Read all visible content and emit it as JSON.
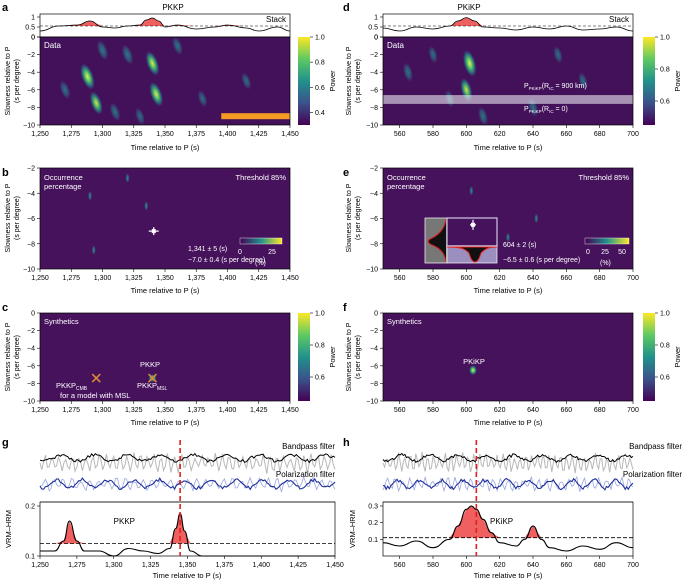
{
  "figure": {
    "panels": [
      {
        "id": "a",
        "label": "a"
      },
      {
        "id": "b",
        "label": "b"
      },
      {
        "id": "c",
        "label": "c"
      },
      {
        "id": "d",
        "label": "d"
      },
      {
        "id": "e",
        "label": "e"
      },
      {
        "id": "f",
        "label": "f"
      },
      {
        "id": "g",
        "label": "g"
      },
      {
        "id": "h",
        "label": "h"
      }
    ],
    "colors": {
      "bg": "#42115a",
      "grid": "#2f0a44",
      "red": "#f06060",
      "orange": "#f59a23",
      "marker": "#d68a3a",
      "dash": "#e02020",
      "blue": "#1f2f99",
      "gray": "#b8b8b8"
    }
  },
  "chart_data": [
    {
      "panel": "a",
      "type": "line+heatmap",
      "top": {
        "title": "PKKP",
        "label": "Stack",
        "yticks": [
          0,
          0.5,
          1
        ],
        "threshold": 0.55,
        "x": [
          1250,
          1265,
          1280,
          1290,
          1300,
          1310,
          1320,
          1330,
          1335,
          1340,
          1345,
          1350,
          1360,
          1375,
          1390,
          1400,
          1415,
          1425,
          1440,
          1450
        ],
        "y": [
          0.3,
          0.55,
          0.6,
          0.8,
          0.5,
          0.45,
          0.55,
          0.6,
          0.85,
          0.95,
          0.8,
          0.5,
          0.6,
          0.4,
          0.5,
          0.6,
          0.45,
          0.3,
          0.5,
          0.3
        ]
      },
      "heatmap": {
        "label": "Data",
        "xlim": [
          1250,
          1450
        ],
        "ylim": [
          -10,
          0
        ],
        "xticks": [
          1250,
          1275,
          1300,
          1325,
          1350,
          1375,
          1400,
          1425,
          1450
        ],
        "xticklabels": [
          "1,250",
          "1,275",
          "1,300",
          "1,325",
          "1,350",
          "1,375",
          "1,400",
          "1,425",
          "1,450"
        ],
        "yticks": [
          0,
          -2,
          -4,
          -6,
          -8,
          -10
        ],
        "xlabel": "Time relative to P (s)",
        "ylabel": "Slowness relative to P",
        "ylabel2": "(s per degree)",
        "hotspots": [
          [
            1288,
            -4.5,
            1.0
          ],
          [
            1295,
            -7.5,
            0.8
          ],
          [
            1340,
            -3,
            0.9
          ],
          [
            1343,
            -6.5,
            0.9
          ],
          [
            1320,
            -2,
            0.6
          ],
          [
            1310,
            -8.5,
            0.5
          ],
          [
            1360,
            -1,
            0.5
          ],
          [
            1380,
            -7,
            0.4
          ],
          [
            1270,
            -6,
            0.5
          ],
          [
            1300,
            -1.5,
            0.6
          ],
          [
            1330,
            -9,
            0.4
          ],
          [
            1415,
            -5,
            0.4
          ]
        ],
        "orange_bar": [
          1395,
          1450,
          -9
        ]
      },
      "colorbar": {
        "label": "Power",
        "ticks": [
          0.4,
          0.6,
          0.8,
          1.0
        ],
        "ticklabels": [
          "0.4",
          "0.6",
          "0.8",
          "1.0"
        ],
        "range": [
          0.3,
          1.0
        ]
      }
    },
    {
      "panel": "b",
      "type": "heatmap",
      "labels": {
        "title": "Occurrence",
        "title2": "percentage",
        "threshold": "Threshold 85%",
        "time_note": "1,341 ± 5 (s)",
        "slow_note": "−7.0 ± 0.4 (s per degree)",
        "unit": "(%)"
      },
      "xlim": [
        1250,
        1450
      ],
      "ylim": [
        -10,
        -2
      ],
      "yticks": [
        -2,
        -4,
        -6,
        -8,
        -10
      ],
      "xticks": [
        1250,
        1275,
        1300,
        1325,
        1350,
        1375,
        1400,
        1425,
        1450
      ],
      "xticklabels": [
        "1,250",
        "1,275",
        "1,300",
        "1,325",
        "1,350",
        "1,375",
        "1,400",
        "1,425",
        "1,450"
      ],
      "xlabel": "Time relative to P (s)",
      "ylabel": "Slowness relative to P",
      "ylabel2": "(s per degree)",
      "marker": [
        1341,
        -7.0
      ],
      "spots": [
        [
          1290,
          -4.2
        ],
        [
          1293,
          -8.5
        ],
        [
          1320,
          -2.8
        ],
        [
          1335,
          -5
        ]
      ],
      "colorbar": {
        "ticks": [
          0,
          25
        ],
        "ticklabels": [
          "0",
          "25"
        ]
      }
    },
    {
      "panel": "c",
      "type": "heatmap",
      "labels": {
        "title": "Synthetics",
        "pkkp": "PKKP",
        "pkkp_cmb": "PKKP",
        "cmb_sub": "CMB",
        "pkkp_msl": "PKKP",
        "msl_sub": "MSL",
        "model_note": "for a model with MSL"
      },
      "xlim": [
        1250,
        1450
      ],
      "ylim": [
        -10,
        0
      ],
      "yticks": [
        0,
        -2,
        -4,
        -6,
        -8,
        -10
      ],
      "xticks": [
        1250,
        1275,
        1300,
        1325,
        1350,
        1375,
        1400,
        1425,
        1450
      ],
      "xticklabels": [
        "1,250",
        "1,275",
        "1,300",
        "1,325",
        "1,350",
        "1,375",
        "1,400",
        "1,425",
        "1,450"
      ],
      "xlabel": "Time relative to P (s)",
      "ylabel": "Slowness relative to P",
      "ylabel2": "(s per degree)",
      "crosses": [
        [
          1295,
          -7.4
        ],
        [
          1340,
          -7.4
        ]
      ],
      "colorbar": {
        "label": "Power",
        "ticks": [
          0.6,
          0.8,
          1.0
        ],
        "ticklabels": [
          "0.6",
          "0.8",
          "1.0"
        ],
        "range": [
          0.45,
          1.0
        ]
      }
    },
    {
      "panel": "d",
      "type": "line+heatmap",
      "top": {
        "title": "PKiKP",
        "label": "Stack",
        "yticks": [
          0,
          0.5,
          1
        ],
        "threshold": 0.55,
        "x": [
          550,
          560,
          570,
          580,
          590,
          595,
          600,
          605,
          610,
          620,
          630,
          640,
          650,
          660,
          670,
          680,
          690,
          700
        ],
        "y": [
          0.45,
          0.3,
          0.5,
          0.4,
          0.55,
          0.8,
          0.97,
          0.8,
          0.5,
          0.45,
          0.35,
          0.5,
          0.4,
          0.55,
          0.35,
          0.4,
          0.5,
          0.3
        ]
      },
      "heatmap": {
        "label": "Data",
        "xlim": [
          550,
          700
        ],
        "ylim": [
          -10,
          0
        ],
        "xticks": [
          560,
          580,
          600,
          620,
          640,
          660,
          680,
          700
        ],
        "xticklabels": [
          "560",
          "580",
          "600",
          "620",
          "640",
          "660",
          "680",
          "700"
        ],
        "yticks": [
          0,
          -2,
          -4,
          -6,
          -8,
          -10
        ],
        "xlabel": "Time relative to P (s)",
        "ylabel": "Slowness relative to P",
        "ylabel2": "(s per degree)",
        "band": [
          -6.6,
          -7.6
        ],
        "annot1": "P",
        "annot1_sub": "PKiKP",
        "annot1_mid": "(R",
        "annot1_sub2": "IC",
        "annot1_end": " = 900 km)",
        "annot2": "P",
        "annot2_sub": "PKiKP",
        "annot2_mid": "(R",
        "annot2_sub2": "IC",
        "annot2_end": " = 0)",
        "hotspots": [
          [
            602,
            -3,
            1.0
          ],
          [
            600,
            -6,
            0.8
          ],
          [
            565,
            -4,
            0.5
          ],
          [
            580,
            -2,
            0.4
          ],
          [
            640,
            -8,
            0.5
          ],
          [
            655,
            -2,
            0.4
          ],
          [
            610,
            -9,
            0.5
          ],
          [
            590,
            -7,
            0.4
          ],
          [
            670,
            -5,
            0.4
          ]
        ]
      },
      "colorbar": {
        "label": "Power",
        "ticks": [
          0.6,
          0.8,
          1.0
        ],
        "ticklabels": [
          "0.6",
          "0.8",
          "1.0"
        ],
        "range": [
          0.45,
          1.0
        ]
      }
    },
    {
      "panel": "e",
      "type": "heatmap",
      "labels": {
        "title": "Occurrence",
        "title2": "percentage",
        "threshold": "Threshold 85%",
        "time_note": "604 ± 2 (s)",
        "slow_note": "−6.5 ± 0.6 (s per degree)",
        "unit": "(%)"
      },
      "xlim": [
        550,
        700
      ],
      "ylim": [
        -10,
        -2
      ],
      "yticks": [
        -2,
        -4,
        -6,
        -8,
        -10
      ],
      "xticks": [
        560,
        580,
        600,
        620,
        640,
        660,
        680,
        700
      ],
      "xticklabels": [
        "560",
        "580",
        "600",
        "620",
        "640",
        "660",
        "680",
        "700"
      ],
      "xlabel": "Time relative to P (s)",
      "ylabel": "Slowness relative to P",
      "ylabel2": "(s per degree)",
      "marker": [
        604,
        -6.5
      ],
      "spots": [
        [
          603,
          -3.8
        ],
        [
          642,
          -6
        ],
        [
          625,
          -7.5
        ]
      ],
      "colorbar": {
        "ticks": [
          0,
          25,
          50
        ],
        "ticklabels": [
          "0",
          "25",
          "50"
        ]
      }
    },
    {
      "panel": "f",
      "type": "heatmap",
      "labels": {
        "title": "Synthetics",
        "pkikp": "PKiKP"
      },
      "xlim": [
        550,
        700
      ],
      "ylim": [
        -10,
        0
      ],
      "yticks": [
        0,
        -2,
        -4,
        -6,
        -8,
        -10
      ],
      "xticks": [
        560,
        580,
        600,
        620,
        640,
        660,
        680,
        700
      ],
      "xticklabels": [
        "560",
        "580",
        "600",
        "620",
        "640",
        "660",
        "680",
        "700"
      ],
      "xlabel": "Time relative to P (s)",
      "ylabel": "Slowness relative to P",
      "ylabel2": "(s per degree)",
      "spot": [
        604,
        -6.5
      ],
      "colorbar": {
        "label": "Power",
        "ticks": [
          0.6,
          0.8,
          1.0
        ],
        "ticklabels": [
          "0.6",
          "0.8",
          "1.0"
        ],
        "range": [
          0.45,
          1.0
        ]
      }
    },
    {
      "panel": "g",
      "type": "line",
      "labels": {
        "bandpass": "Bandpass filter",
        "polarization": "Polarization filter",
        "phase": "PKKP",
        "ylabel": "VRM–HRM",
        "xlabel": "Time relative to P (s)"
      },
      "xlim": [
        1250,
        1450
      ],
      "ylim": [
        0.1,
        0.2
      ],
      "yticks": [
        0.1,
        0.2
      ],
      "yticklabels": [
        "0.1",
        "0.2"
      ],
      "threshold": 0.125,
      "pick": 1345,
      "xticks": [
        1250,
        1275,
        1300,
        1325,
        1350,
        1375,
        1400,
        1425,
        1450
      ],
      "xticklabels": [
        "1,250",
        "1,275",
        "1,300",
        "1,325",
        "1,350",
        "1,375",
        "1,400",
        "1,425",
        "1,450"
      ],
      "x": [
        1250,
        1260,
        1266,
        1270,
        1275,
        1280,
        1290,
        1300,
        1310,
        1320,
        1330,
        1338,
        1342,
        1345,
        1348,
        1352,
        1360,
        1380,
        1400,
        1420,
        1440,
        1450
      ],
      "y": [
        0.11,
        0.11,
        0.13,
        0.17,
        0.13,
        0.11,
        0.11,
        0.1,
        0.115,
        0.11,
        0.105,
        0.115,
        0.155,
        0.185,
        0.15,
        0.11,
        0.1,
        0.1,
        0.1,
        0.1,
        0.1,
        0.1
      ]
    },
    {
      "panel": "h",
      "type": "line",
      "labels": {
        "bandpass": "Bandpass filter",
        "polarization": "Polarization filter",
        "phase": "PKiKP",
        "ylabel": "VRM–HRM",
        "xlabel": "Time relative to P (s)"
      },
      "xlim": [
        550,
        700
      ],
      "ylim": [
        0,
        0.3
      ],
      "yticks": [
        0.1,
        0.2,
        0.3
      ],
      "yticklabels": [
        "0.1",
        "0.2",
        "0.3"
      ],
      "threshold": 0.11,
      "pick": 606,
      "xticks": [
        560,
        580,
        600,
        620,
        640,
        660,
        680,
        700
      ],
      "xticklabels": [
        "560",
        "580",
        "600",
        "620",
        "640",
        "660",
        "680",
        "700"
      ],
      "x": [
        550,
        560,
        570,
        580,
        590,
        595,
        600,
        603,
        606,
        610,
        615,
        620,
        630,
        635,
        640,
        645,
        650,
        660,
        670,
        680,
        690,
        700
      ],
      "y": [
        0.08,
        0.06,
        0.09,
        0.05,
        0.1,
        0.18,
        0.28,
        0.3,
        0.28,
        0.22,
        0.14,
        0.08,
        0.06,
        0.1,
        0.18,
        0.1,
        0.05,
        0.03,
        0.06,
        0.04,
        0.08,
        0.05
      ]
    }
  ]
}
